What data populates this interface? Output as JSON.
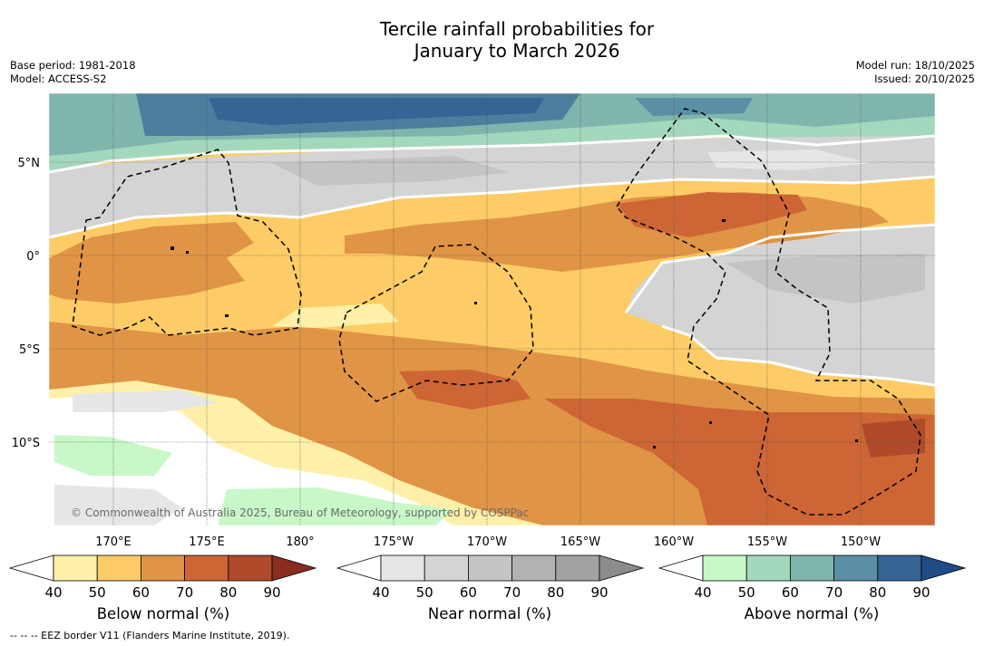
{
  "title": {
    "line1": "Tercile rainfall probabilities for",
    "line2": "January to March 2026"
  },
  "meta_left": {
    "base_period": "Base period: 1981-2018",
    "model": "Model: ACCESS-S2"
  },
  "meta_right": {
    "model_run": "Model run: 18/10/2025",
    "issued": "Issued: 20/10/2025"
  },
  "map": {
    "lat_labels": [
      "5°N",
      "0°",
      "5°S",
      "10°S"
    ],
    "lon_labels": [
      "170°E",
      "175°E",
      "180°",
      "175°W",
      "170°W",
      "165°W",
      "160°W",
      "155°W",
      "150°W"
    ],
    "copyright": "© Commonwealth of Australia 2025, Bureau of Meteorology, supported by COSPPac"
  },
  "colorbars": [
    {
      "title": "Below normal (%)",
      "ticks": [
        "40",
        "50",
        "60",
        "70",
        "80",
        "90"
      ],
      "colors": [
        "#ffffff",
        "#fef0a8",
        "#fdcc66",
        "#e09445",
        "#cd6535",
        "#af4a2a",
        "#8a2c20"
      ]
    },
    {
      "title": "Near normal (%)",
      "ticks": [
        "40",
        "50",
        "60",
        "70",
        "80",
        "90"
      ],
      "colors": [
        "#ffffff",
        "#e6e6e6",
        "#d4d4d4",
        "#c4c4c4",
        "#b2b2b2",
        "#a2a2a2",
        "#8c8c8c"
      ]
    },
    {
      "title": "Above normal (%)",
      "ticks": [
        "40",
        "50",
        "60",
        "70",
        "80",
        "90"
      ],
      "colors": [
        "#ffffff",
        "#c8f8c8",
        "#a4d8bc",
        "#80b5ad",
        "#5b8fa5",
        "#366494",
        "#1f4b86"
      ]
    }
  ],
  "footnote": "-- -- -- EEZ border V11 (Flanders Marine Institute, 2019)."
}
